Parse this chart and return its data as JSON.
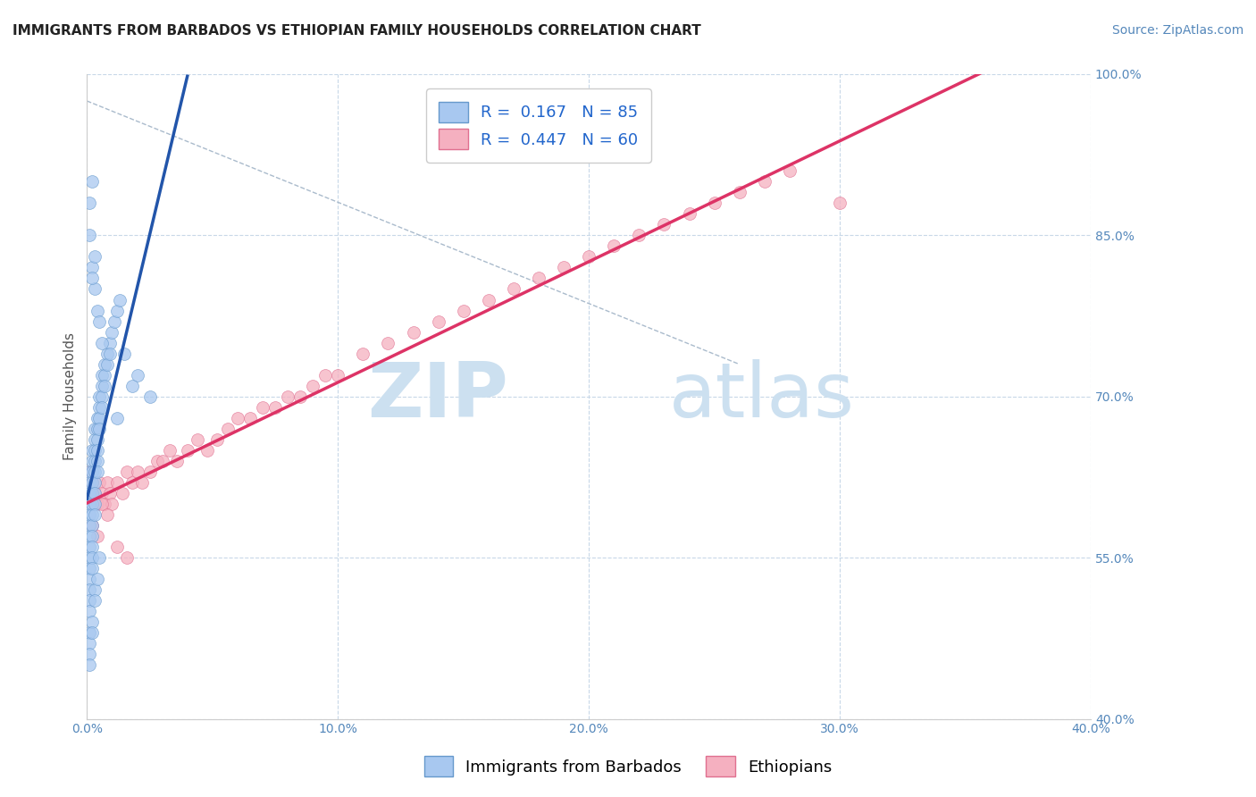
{
  "title": "IMMIGRANTS FROM BARBADOS VS ETHIOPIAN FAMILY HOUSEHOLDS CORRELATION CHART",
  "source_text": "Source: ZipAtlas.com",
  "ylabel": "Family Households",
  "xlim": [
    0.0,
    0.4
  ],
  "ylim": [
    0.4,
    1.0
  ],
  "xtick_labels": [
    "0.0%",
    "10.0%",
    "20.0%",
    "30.0%",
    "40.0%"
  ],
  "xtick_values": [
    0.0,
    0.1,
    0.2,
    0.3,
    0.4
  ],
  "ytick_labels": [
    "100.0%",
    "85.0%",
    "70.0%",
    "55.0%",
    "40.0%"
  ],
  "ytick_values": [
    1.0,
    0.85,
    0.7,
    0.55,
    0.4
  ],
  "blue_color": "#a8c8f0",
  "blue_edge_color": "#6699cc",
  "pink_color": "#f5b0c0",
  "pink_edge_color": "#e07090",
  "blue_line_color": "#2255aa",
  "pink_line_color": "#dd3366",
  "dashed_line_color": "#aabbcc",
  "legend_blue_label": "R =  0.167   N = 85",
  "legend_pink_label": "R =  0.447   N = 60",
  "legend_text_color": "#2266cc",
  "watermark_zip": "ZIP",
  "watermark_atlas": "atlas",
  "watermark_color": "#cce0f0",
  "background_color": "#ffffff",
  "grid_color": "#c8d8e8",
  "blue_scatter_x": [
    0.001,
    0.001,
    0.001,
    0.001,
    0.001,
    0.001,
    0.001,
    0.001,
    0.001,
    0.001,
    0.001,
    0.001,
    0.001,
    0.001,
    0.002,
    0.002,
    0.002,
    0.002,
    0.002,
    0.002,
    0.002,
    0.002,
    0.002,
    0.002,
    0.002,
    0.002,
    0.003,
    0.003,
    0.003,
    0.003,
    0.003,
    0.003,
    0.003,
    0.003,
    0.003,
    0.004,
    0.004,
    0.004,
    0.004,
    0.004,
    0.004,
    0.005,
    0.005,
    0.005,
    0.005,
    0.006,
    0.006,
    0.006,
    0.006,
    0.007,
    0.007,
    0.007,
    0.008,
    0.008,
    0.009,
    0.009,
    0.01,
    0.011,
    0.012,
    0.013,
    0.001,
    0.001,
    0.001,
    0.001,
    0.002,
    0.002,
    0.003,
    0.003,
    0.004,
    0.005,
    0.001,
    0.002,
    0.003,
    0.004,
    0.003,
    0.002,
    0.001,
    0.005,
    0.006,
    0.002,
    0.02,
    0.015,
    0.025,
    0.012,
    0.018
  ],
  "blue_scatter_y": [
    0.63,
    0.62,
    0.61,
    0.6,
    0.59,
    0.58,
    0.57,
    0.56,
    0.55,
    0.54,
    0.53,
    0.52,
    0.51,
    0.5,
    0.65,
    0.64,
    0.63,
    0.62,
    0.61,
    0.6,
    0.59,
    0.58,
    0.57,
    0.56,
    0.55,
    0.54,
    0.67,
    0.66,
    0.65,
    0.64,
    0.63,
    0.62,
    0.61,
    0.6,
    0.59,
    0.68,
    0.67,
    0.66,
    0.65,
    0.64,
    0.63,
    0.7,
    0.69,
    0.68,
    0.67,
    0.72,
    0.71,
    0.7,
    0.69,
    0.73,
    0.72,
    0.71,
    0.74,
    0.73,
    0.75,
    0.74,
    0.76,
    0.77,
    0.78,
    0.79,
    0.48,
    0.47,
    0.46,
    0.45,
    0.49,
    0.48,
    0.52,
    0.51,
    0.53,
    0.55,
    0.85,
    0.82,
    0.8,
    0.78,
    0.83,
    0.81,
    0.88,
    0.77,
    0.75,
    0.9,
    0.72,
    0.74,
    0.7,
    0.68,
    0.71
  ],
  "pink_scatter_x": [
    0.001,
    0.002,
    0.003,
    0.004,
    0.005,
    0.006,
    0.007,
    0.008,
    0.009,
    0.01,
    0.012,
    0.014,
    0.016,
    0.018,
    0.02,
    0.022,
    0.025,
    0.028,
    0.03,
    0.033,
    0.036,
    0.04,
    0.044,
    0.048,
    0.052,
    0.056,
    0.06,
    0.065,
    0.07,
    0.075,
    0.08,
    0.085,
    0.09,
    0.095,
    0.1,
    0.11,
    0.12,
    0.13,
    0.14,
    0.15,
    0.16,
    0.17,
    0.18,
    0.19,
    0.2,
    0.21,
    0.22,
    0.23,
    0.24,
    0.25,
    0.26,
    0.27,
    0.28,
    0.3,
    0.002,
    0.004,
    0.006,
    0.008,
    0.012,
    0.016
  ],
  "pink_scatter_y": [
    0.63,
    0.62,
    0.61,
    0.6,
    0.62,
    0.61,
    0.6,
    0.62,
    0.61,
    0.6,
    0.62,
    0.61,
    0.63,
    0.62,
    0.63,
    0.62,
    0.63,
    0.64,
    0.64,
    0.65,
    0.64,
    0.65,
    0.66,
    0.65,
    0.66,
    0.67,
    0.68,
    0.68,
    0.69,
    0.69,
    0.7,
    0.7,
    0.71,
    0.72,
    0.72,
    0.74,
    0.75,
    0.76,
    0.77,
    0.78,
    0.79,
    0.8,
    0.81,
    0.82,
    0.83,
    0.84,
    0.85,
    0.86,
    0.87,
    0.88,
    0.89,
    0.9,
    0.91,
    0.88,
    0.58,
    0.57,
    0.6,
    0.59,
    0.56,
    0.55
  ],
  "title_fontsize": 11,
  "axis_label_fontsize": 11,
  "tick_fontsize": 10,
  "legend_fontsize": 13,
  "source_fontsize": 10,
  "marker_size": 100,
  "line_width": 2.5
}
